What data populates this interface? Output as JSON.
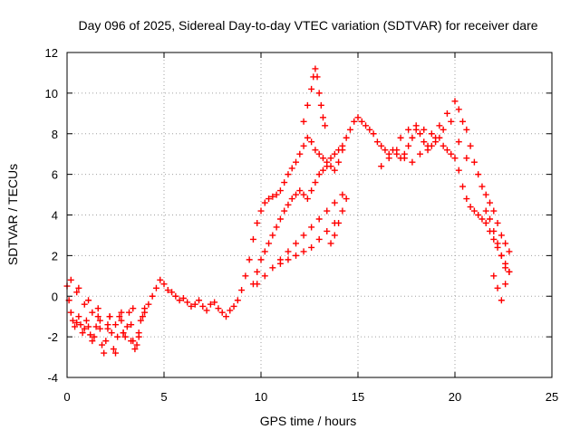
{
  "chart_data": {
    "type": "scatter",
    "title": "Day 096 of 2025, Sidereal Day-to-day VTEC variation (SDTVAR) for receiver dare",
    "xlabel": "GPS time / hours",
    "ylabel": "SDTVAR / TECUs",
    "xlim": [
      0,
      25
    ],
    "ylim": [
      -4,
      12
    ],
    "xticks": [
      0,
      5,
      10,
      15,
      20,
      25
    ],
    "yticks": [
      -4,
      -2,
      0,
      2,
      4,
      6,
      8,
      10,
      12
    ],
    "grid": true,
    "marker": "+",
    "colors": {
      "series": "#ff0000",
      "grid": "#a0a0a0",
      "axis": "#000000"
    },
    "series": [
      {
        "name": "SDTVAR",
        "x": [
          0.0,
          0.1,
          0.2,
          0.3,
          0.4,
          0.5,
          0.6,
          0.7,
          0.8,
          0.9,
          1.0,
          1.1,
          1.2,
          1.3,
          1.4,
          1.5,
          1.6,
          1.7,
          1.8,
          1.9,
          2.0,
          2.1,
          2.2,
          2.3,
          2.4,
          2.5,
          2.6,
          2.7,
          2.8,
          2.9,
          3.0,
          3.1,
          3.2,
          3.3,
          3.4,
          3.5,
          3.6,
          3.7,
          3.8,
          3.9,
          4.0,
          4.2,
          4.4,
          4.6,
          4.8,
          5.0,
          5.2,
          5.4,
          5.6,
          5.8,
          6.0,
          6.2,
          6.4,
          6.6,
          6.8,
          7.0,
          7.2,
          7.4,
          7.6,
          7.8,
          8.0,
          8.2,
          8.4,
          8.6,
          8.8,
          9.0,
          9.2,
          9.4,
          9.6,
          9.8,
          10.0,
          10.2,
          10.4,
          10.6,
          10.8,
          11.0,
          11.2,
          11.4,
          11.6,
          11.8,
          12.0,
          12.2,
          12.4,
          12.6,
          12.8,
          13.0,
          13.2,
          13.4,
          13.6,
          13.8,
          14.0,
          14.2,
          14.4,
          14.6,
          14.8,
          15.0,
          15.2,
          15.4,
          15.6,
          15.8,
          16.0,
          16.2,
          16.4,
          16.6,
          16.8,
          17.0,
          17.2,
          17.4,
          17.6,
          17.8,
          18.0,
          18.2,
          18.4,
          18.6,
          18.8,
          19.0,
          19.2,
          19.4,
          19.6,
          19.8,
          20.0,
          20.2,
          20.4,
          20.6,
          20.8,
          21.0,
          21.2,
          21.4,
          21.6,
          21.8,
          22.0,
          22.2,
          22.4,
          22.6,
          22.8,
          0.2,
          0.5,
          0.9,
          1.3,
          1.7,
          2.1,
          2.5,
          2.9,
          3.3,
          3.7,
          0.6,
          1.1,
          1.6,
          2.2,
          2.8,
          3.4,
          4.0,
          9.6,
          9.8,
          10.0,
          10.2,
          10.4,
          10.6,
          10.8,
          11.0,
          11.2,
          11.4,
          11.6,
          11.8,
          12.0,
          12.2,
          12.4,
          12.6,
          12.8,
          13.0,
          13.2,
          13.4,
          13.6,
          13.8,
          14.0,
          14.2,
          9.8,
          10.2,
          10.6,
          11.0,
          11.4,
          11.8,
          12.2,
          12.6,
          13.0,
          13.4,
          13.8,
          14.2,
          11.0,
          11.4,
          11.8,
          12.2,
          12.6,
          13.0,
          13.4,
          13.8,
          13.6,
          13.8,
          14.0,
          14.2,
          14.4,
          12.2,
          12.4,
          12.6,
          12.7,
          12.8,
          12.9,
          13.0,
          13.1,
          13.2,
          13.3,
          17.2,
          17.6,
          18.0,
          18.4,
          18.8,
          19.2,
          19.6,
          20.0,
          20.2,
          20.4,
          20.6,
          20.8,
          21.0,
          21.2,
          21.4,
          21.6,
          21.8,
          22.0,
          22.2,
          22.4,
          22.6,
          22.8,
          21.6,
          21.8,
          22.0,
          22.2,
          22.4,
          22.6,
          22.0,
          22.2,
          22.4,
          22.6,
          22.8,
          16.2,
          16.6,
          17.0,
          17.4,
          17.8,
          18.2,
          18.6,
          19.0,
          19.4,
          19.8,
          20.2,
          20.6
        ],
        "y": [
          0.5,
          -0.2,
          -0.8,
          -1.2,
          -1.5,
          -1.3,
          -1.0,
          -1.4,
          -1.8,
          -1.6,
          -1.2,
          -1.5,
          -1.9,
          -2.2,
          -2.0,
          -1.5,
          -1.0,
          -1.6,
          -2.4,
          -2.8,
          -2.2,
          -1.4,
          -1.0,
          -1.8,
          -2.6,
          -2.8,
          -2.0,
          -1.0,
          -1.2,
          -1.8,
          -2.0,
          -1.5,
          -0.8,
          -1.4,
          -2.2,
          -2.6,
          -2.4,
          -1.8,
          -1.2,
          -1.0,
          -0.6,
          -0.4,
          0.0,
          0.4,
          0.8,
          0.6,
          0.3,
          0.2,
          0.0,
          -0.2,
          -0.1,
          -0.3,
          -0.5,
          -0.4,
          -0.2,
          -0.5,
          -0.7,
          -0.4,
          -0.3,
          -0.6,
          -0.8,
          -1.0,
          -0.7,
          -0.5,
          -0.2,
          0.3,
          1.0,
          1.8,
          2.8,
          3.6,
          4.2,
          4.6,
          4.8,
          4.9,
          5.0,
          5.2,
          5.6,
          6.0,
          6.3,
          6.6,
          7.0,
          7.4,
          7.8,
          7.6,
          7.2,
          7.0,
          6.8,
          6.6,
          6.4,
          6.2,
          6.6,
          7.2,
          7.8,
          8.2,
          8.6,
          8.8,
          8.6,
          8.4,
          8.2,
          8.0,
          7.6,
          7.4,
          7.2,
          7.0,
          7.2,
          7.0,
          6.8,
          7.0,
          7.4,
          7.8,
          8.2,
          8.0,
          7.6,
          7.2,
          7.4,
          7.6,
          7.8,
          7.4,
          7.2,
          7.0,
          6.8,
          6.2,
          5.4,
          4.8,
          4.4,
          4.2,
          4.0,
          3.8,
          3.6,
          3.2,
          2.8,
          2.4,
          2.0,
          1.6,
          1.2,
          0.8,
          0.2,
          -0.4,
          -0.8,
          -1.2,
          -1.6,
          -1.4,
          -1.8,
          -2.2,
          -2.0,
          0.4,
          -0.2,
          -0.6,
          -1.0,
          -0.8,
          -0.6,
          -0.8,
          0.6,
          1.2,
          1.8,
          2.2,
          2.6,
          3.0,
          3.4,
          3.8,
          4.2,
          4.5,
          4.8,
          5.0,
          5.2,
          5.0,
          4.8,
          5.2,
          5.6,
          6.0,
          6.2,
          6.4,
          6.8,
          7.0,
          7.2,
          7.4,
          0.6,
          1.0,
          1.4,
          1.8,
          2.2,
          2.6,
          3.0,
          3.4,
          3.8,
          4.2,
          4.6,
          5.0,
          1.6,
          1.8,
          2.0,
          2.2,
          2.4,
          2.8,
          3.2,
          3.6,
          2.6,
          3.0,
          3.6,
          4.2,
          4.8,
          8.6,
          9.4,
          10.2,
          10.8,
          11.2,
          10.8,
          10.0,
          9.4,
          8.8,
          8.4,
          7.8,
          8.2,
          8.4,
          8.2,
          8.0,
          8.4,
          9.0,
          9.6,
          9.2,
          8.6,
          8.2,
          7.4,
          6.6,
          6.0,
          5.4,
          5.0,
          4.6,
          4.2,
          3.6,
          3.0,
          2.6,
          2.2,
          4.2,
          3.8,
          3.2,
          2.6,
          2.0,
          1.4,
          1.0,
          0.4,
          -0.2,
          0.6,
          1.2,
          6.4,
          6.8,
          7.2,
          6.8,
          6.6,
          7.0,
          7.4,
          7.8,
          8.2,
          8.6,
          7.6,
          6.8
        ]
      }
    ]
  }
}
